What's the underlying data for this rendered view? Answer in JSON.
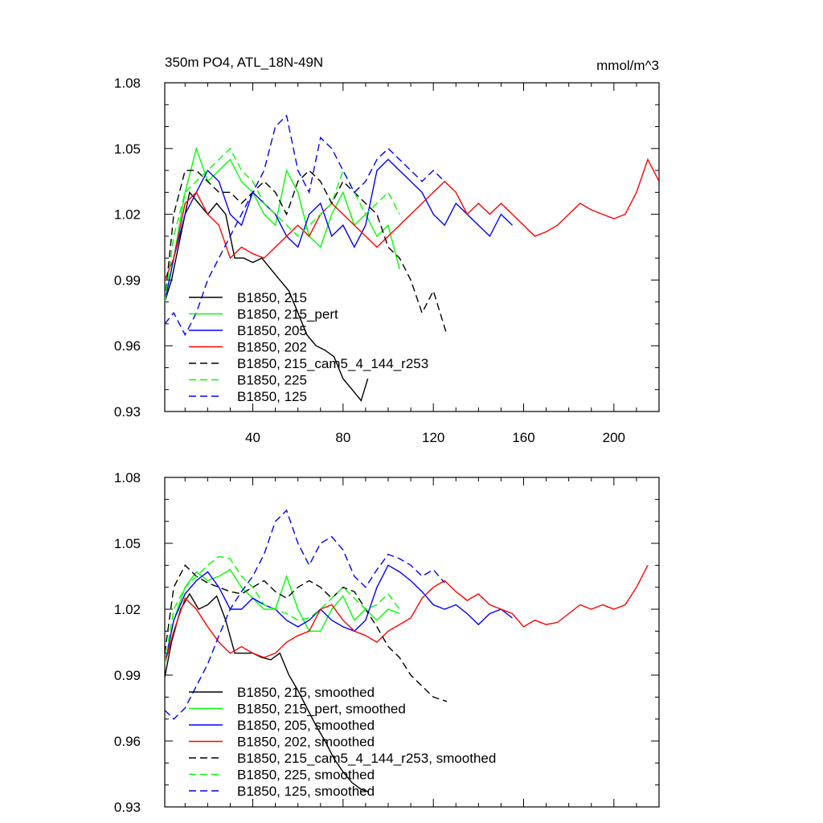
{
  "chart_data": [
    {
      "type": "line",
      "title": "350m PO4, ATL_18N-49N",
      "units_label": "mmol/m^3",
      "xlabel": "",
      "ylabel": "",
      "xlim": [
        1,
        220
      ],
      "ylim": [
        0.93,
        1.08
      ],
      "xticks": [
        "40",
        "80",
        "120",
        "160",
        "200"
      ],
      "yticks": [
        "0.93",
        "0.96",
        "0.99",
        "1.02",
        "1.05",
        "1.08"
      ],
      "grid": false,
      "legend_position": "bottom-left",
      "series": [
        {
          "name": "B1850, 215",
          "color": "#000000",
          "dash": "solid",
          "x": [
            1,
            4,
            8,
            12,
            16,
            20,
            24,
            28,
            32,
            36,
            40,
            44,
            48,
            52,
            56,
            60,
            64,
            68,
            72,
            76,
            80,
            84,
            88,
            91
          ],
          "y": [
            0.98,
            0.99,
            1.01,
            1.03,
            1.025,
            1.02,
            1.025,
            1.02,
            1.0,
            1.0,
            0.998,
            1.0,
            0.995,
            0.99,
            0.985,
            0.975,
            0.965,
            0.96,
            0.958,
            0.955,
            0.945,
            0.94,
            0.935,
            0.945
          ]
        },
        {
          "name": "B1850, 215_pert",
          "color": "#00ff00",
          "dash": "solid",
          "x": [
            1,
            5,
            10,
            15,
            20,
            25,
            30,
            35,
            40,
            45,
            50,
            55,
            60,
            65,
            70,
            75,
            80,
            85,
            90,
            95,
            100,
            105
          ],
          "y": [
            0.98,
            1.0,
            1.03,
            1.05,
            1.035,
            1.04,
            1.045,
            1.035,
            1.03,
            1.02,
            1.015,
            1.04,
            1.03,
            1.01,
            1.005,
            1.02,
            1.03,
            1.015,
            1.02,
            1.01,
            1.015,
            0.995
          ]
        },
        {
          "name": "B1850, 205",
          "color": "#0000ff",
          "dash": "solid",
          "x": [
            1,
            5,
            10,
            15,
            20,
            25,
            30,
            35,
            40,
            45,
            50,
            55,
            60,
            65,
            70,
            75,
            80,
            85,
            90,
            95,
            100,
            105,
            110,
            115,
            120,
            125,
            130,
            135,
            140,
            145,
            150,
            155
          ],
          "y": [
            0.98,
            1.0,
            1.02,
            1.03,
            1.04,
            1.035,
            1.02,
            1.015,
            1.03,
            1.025,
            1.02,
            1.01,
            1.005,
            1.02,
            1.025,
            1.01,
            1.015,
            1.005,
            1.015,
            1.04,
            1.045,
            1.04,
            1.035,
            1.03,
            1.02,
            1.015,
            1.025,
            1.02,
            1.015,
            1.01,
            1.02,
            1.015
          ]
        },
        {
          "name": "B1850, 202",
          "color": "#ff0000",
          "dash": "solid",
          "x": [
            1,
            5,
            10,
            15,
            20,
            25,
            30,
            35,
            40,
            45,
            50,
            55,
            60,
            65,
            70,
            75,
            80,
            85,
            90,
            95,
            100,
            105,
            110,
            115,
            120,
            125,
            130,
            135,
            140,
            145,
            150,
            155,
            160,
            165,
            170,
            175,
            180,
            185,
            190,
            195,
            200,
            205,
            210,
            215,
            220
          ],
          "y": [
            0.99,
            1.0,
            1.025,
            1.03,
            1.02,
            1.015,
            1.0,
            1.005,
            1.002,
            1.0,
            1.005,
            1.01,
            1.015,
            1.01,
            1.02,
            1.025,
            1.02,
            1.015,
            1.01,
            1.005,
            1.01,
            1.015,
            1.02,
            1.025,
            1.03,
            1.035,
            1.03,
            1.02,
            1.025,
            1.02,
            1.025,
            1.02,
            1.015,
            1.01,
            1.012,
            1.015,
            1.02,
            1.025,
            1.022,
            1.02,
            1.018,
            1.02,
            1.03,
            1.045,
            1.035
          ]
        },
        {
          "name": "B1850, 215_cam5_4_144_r253",
          "color": "#000000",
          "dash": "dashed",
          "x": [
            1,
            5,
            10,
            15,
            20,
            25,
            30,
            35,
            40,
            45,
            50,
            55,
            60,
            65,
            70,
            75,
            80,
            85,
            90,
            95,
            100,
            105,
            110,
            115,
            120,
            126
          ],
          "y": [
            0.98,
            1.02,
            1.04,
            1.04,
            1.035,
            1.03,
            1.03,
            1.025,
            1.03,
            1.035,
            1.03,
            1.02,
            1.035,
            1.04,
            1.035,
            1.025,
            1.035,
            1.03,
            1.025,
            1.02,
            1.005,
            1.0,
            0.99,
            0.975,
            0.985,
            0.965
          ]
        },
        {
          "name": "B1850, 225",
          "color": "#00ff00",
          "dash": "dashed",
          "x": [
            1,
            5,
            10,
            15,
            20,
            25,
            30,
            35,
            40,
            45,
            50,
            55,
            60,
            65,
            70,
            75,
            80,
            85,
            90,
            95,
            100,
            105
          ],
          "y": [
            0.98,
            1.01,
            1.03,
            1.035,
            1.04,
            1.045,
            1.05,
            1.04,
            1.035,
            1.025,
            1.02,
            1.015,
            1.01,
            1.015,
            1.02,
            1.025,
            1.04,
            1.03,
            1.02,
            1.025,
            1.03,
            1.02
          ]
        },
        {
          "name": "B1850, 125",
          "color": "#0000ff",
          "dash": "dashed",
          "x": [
            1,
            5,
            10,
            15,
            20,
            25,
            30,
            35,
            40,
            45,
            50,
            55,
            60,
            65,
            70,
            75,
            80,
            85,
            90,
            95,
            100,
            105,
            110,
            115,
            120,
            125
          ],
          "y": [
            0.97,
            0.975,
            0.965,
            0.975,
            0.99,
            1.0,
            1.01,
            1.02,
            1.03,
            1.04,
            1.06,
            1.065,
            1.04,
            1.03,
            1.055,
            1.05,
            1.04,
            1.03,
            1.035,
            1.045,
            1.05,
            1.045,
            1.04,
            1.035,
            1.04,
            1.035
          ]
        }
      ]
    },
    {
      "type": "line",
      "title": "",
      "xlabel": "",
      "ylabel": "",
      "xlim": [
        1,
        220
      ],
      "ylim": [
        0.93,
        1.08
      ],
      "xticks": [],
      "yticks": [
        "0.93",
        "0.96",
        "0.99",
        "1.02",
        "1.05",
        "1.08"
      ],
      "grid": false,
      "legend_position": "bottom-left",
      "series": [
        {
          "name": "B1850, 215, smoothed",
          "color": "#000000",
          "dash": "solid",
          "x": [
            1,
            4,
            8,
            12,
            16,
            20,
            24,
            28,
            32,
            36,
            40,
            44,
            48,
            52,
            56,
            60,
            64,
            68,
            72,
            76,
            80,
            84,
            88,
            91
          ],
          "y": [
            0.989,
            1.005,
            1.02,
            1.027,
            1.02,
            1.022,
            1.026,
            1.015,
            1.0,
            1.0,
            1.0,
            0.998,
            0.997,
            1.0,
            0.99,
            0.983,
            0.975,
            0.967,
            0.96,
            0.952,
            0.946,
            0.941,
            0.938,
            0.937
          ]
        },
        {
          "name": "B1850, 215_pert, smoothed",
          "color": "#00ff00",
          "dash": "solid",
          "x": [
            1,
            5,
            10,
            15,
            20,
            25,
            30,
            35,
            40,
            45,
            50,
            55,
            60,
            65,
            70,
            75,
            80,
            85,
            90,
            95,
            100,
            105
          ],
          "y": [
            0.995,
            1.015,
            1.03,
            1.037,
            1.033,
            1.035,
            1.038,
            1.03,
            1.025,
            1.02,
            1.02,
            1.035,
            1.02,
            1.01,
            1.01,
            1.02,
            1.026,
            1.015,
            1.02,
            1.015,
            1.02,
            1.018
          ]
        },
        {
          "name": "B1850, 205, smoothed",
          "color": "#0000ff",
          "dash": "solid",
          "x": [
            1,
            5,
            10,
            15,
            20,
            25,
            30,
            35,
            40,
            45,
            50,
            55,
            60,
            65,
            70,
            75,
            80,
            85,
            90,
            95,
            100,
            105,
            110,
            115,
            120,
            125,
            130,
            135,
            140,
            145,
            150,
            155
          ],
          "y": [
            0.995,
            1.015,
            1.027,
            1.033,
            1.037,
            1.03,
            1.02,
            1.02,
            1.025,
            1.022,
            1.02,
            1.015,
            1.012,
            1.015,
            1.02,
            1.015,
            1.012,
            1.01,
            1.015,
            1.03,
            1.04,
            1.037,
            1.033,
            1.028,
            1.022,
            1.02,
            1.022,
            1.018,
            1.013,
            1.018,
            1.02,
            1.016
          ]
        },
        {
          "name": "B1850, 202, smoothed",
          "color": "#ff0000",
          "dash": "solid",
          "x": [
            1,
            5,
            10,
            15,
            20,
            25,
            30,
            35,
            40,
            45,
            50,
            55,
            60,
            65,
            70,
            75,
            80,
            85,
            90,
            95,
            100,
            105,
            110,
            115,
            120,
            125,
            130,
            135,
            140,
            145,
            150,
            155,
            160,
            165,
            170,
            175,
            180,
            185,
            190,
            195,
            200,
            205,
            210,
            215
          ],
          "y": [
            0.995,
            1.01,
            1.025,
            1.02,
            1.012,
            1.005,
            1.0,
            1.003,
            1.0,
            0.998,
            1.0,
            1.005,
            1.008,
            1.01,
            1.02,
            1.022,
            1.015,
            1.01,
            1.008,
            1.005,
            1.01,
            1.013,
            1.016,
            1.025,
            1.03,
            1.033,
            1.028,
            1.024,
            1.027,
            1.022,
            1.02,
            1.018,
            1.012,
            1.015,
            1.013,
            1.014,
            1.018,
            1.022,
            1.02,
            1.022,
            1.02,
            1.022,
            1.03,
            1.04
          ]
        },
        {
          "name": "B1850, 215_cam5_4_144_r253, smoothed",
          "color": "#000000",
          "dash": "dashed",
          "x": [
            1,
            5,
            10,
            15,
            20,
            25,
            30,
            35,
            40,
            45,
            50,
            55,
            60,
            65,
            70,
            75,
            80,
            85,
            90,
            95,
            100,
            105,
            110,
            115,
            120,
            126
          ],
          "y": [
            1.0,
            1.03,
            1.04,
            1.035,
            1.032,
            1.03,
            1.028,
            1.027,
            1.03,
            1.033,
            1.028,
            1.025,
            1.03,
            1.033,
            1.03,
            1.025,
            1.03,
            1.028,
            1.02,
            1.012,
            1.003,
            0.998,
            0.99,
            0.985,
            0.98,
            0.978
          ]
        },
        {
          "name": "B1850, 225, smoothed",
          "color": "#00ff00",
          "dash": "dashed",
          "x": [
            1,
            5,
            10,
            15,
            20,
            25,
            30,
            35,
            40,
            45,
            50,
            55,
            60,
            65,
            70,
            75,
            80,
            85,
            90,
            95,
            100,
            105
          ],
          "y": [
            0.995,
            1.02,
            1.03,
            1.035,
            1.04,
            1.044,
            1.043,
            1.035,
            1.03,
            1.022,
            1.02,
            1.018,
            1.015,
            1.016,
            1.02,
            1.025,
            1.03,
            1.025,
            1.02,
            1.022,
            1.027,
            1.02
          ]
        },
        {
          "name": "B1850, 125, smoothed",
          "color": "#0000ff",
          "dash": "dashed",
          "x": [
            1,
            5,
            10,
            15,
            20,
            25,
            30,
            35,
            40,
            45,
            50,
            55,
            60,
            65,
            70,
            75,
            80,
            85,
            90,
            95,
            100,
            105,
            110,
            115,
            120,
            125
          ],
          "y": [
            0.974,
            0.97,
            0.975,
            0.985,
            0.995,
            1.008,
            1.02,
            1.028,
            1.035,
            1.045,
            1.06,
            1.065,
            1.05,
            1.04,
            1.05,
            1.053,
            1.047,
            1.035,
            1.03,
            1.038,
            1.045,
            1.043,
            1.04,
            1.035,
            1.038,
            1.032
          ]
        }
      ]
    }
  ]
}
